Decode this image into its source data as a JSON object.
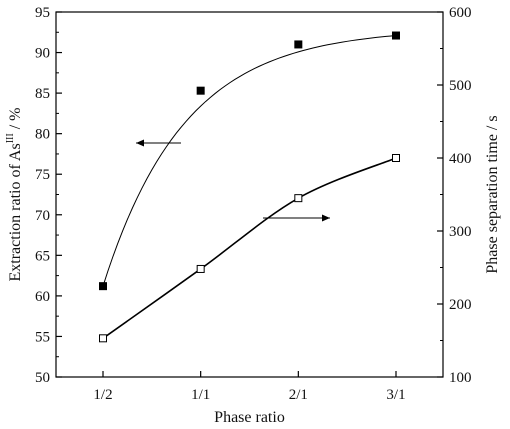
{
  "chart_data": {
    "type": "scatter",
    "categories": [
      "1/2",
      "1/1",
      "2/1",
      "3/1"
    ],
    "series": [
      {
        "axis": "left",
        "marker": "filled-square",
        "color": "#000000",
        "values": [
          61.2,
          85.3,
          91.0,
          92.1
        ]
      },
      {
        "axis": "right",
        "marker": "open-square",
        "color": "#000000",
        "values": [
          153,
          248,
          345,
          400
        ]
      }
    ],
    "xlabel": "Phase ratio",
    "ylabel_left": {
      "prefix": "Extraction ratio of As",
      "sup": "III",
      "suffix": " / %"
    },
    "ylabel_right": "Phase separation time  / s",
    "ylim_left": [
      50,
      95
    ],
    "ylim_right": [
      100,
      600
    ],
    "yticks_left": [
      "50",
      "55",
      "60",
      "65",
      "70",
      "75",
      "80",
      "85",
      "90",
      "95"
    ],
    "yticks_right": [
      "100",
      "200",
      "300",
      "400",
      "500",
      "600"
    ],
    "annotations": [
      {
        "type": "arrow",
        "direction": "left",
        "series": 0
      },
      {
        "type": "arrow",
        "direction": "right",
        "series": 1
      }
    ],
    "grid": false,
    "legend": "none"
  }
}
